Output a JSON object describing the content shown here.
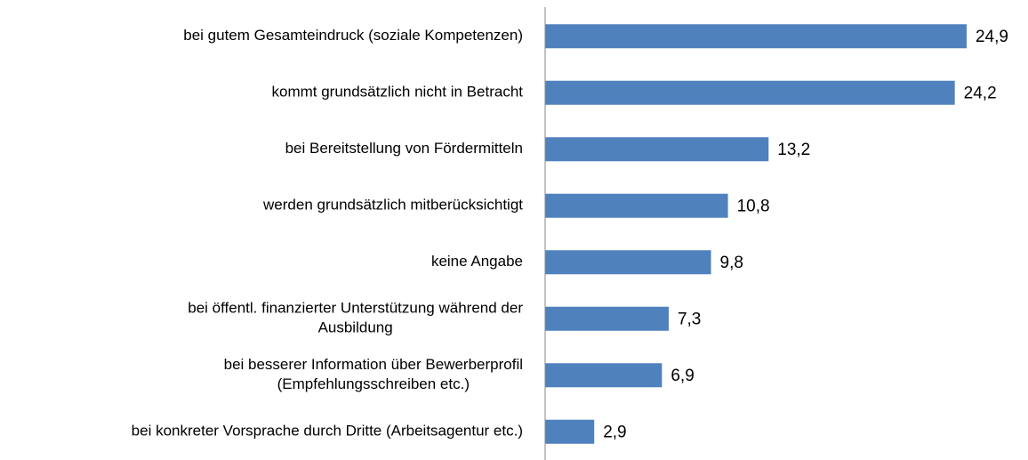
{
  "chart_data": {
    "type": "barh",
    "categories": [
      "bei gutem Gesamteindruck (soziale Kompetenzen)",
      "kommt grundsätzlich nicht in Betracht",
      "bei Bereitstellung von Fördermitteln",
      "werden grundsätzlich mitberücksichtigt",
      "keine Angabe",
      "bei öffentl. finanzierter Unterstützung während der\nAusbildung",
      "bei besserer Information über Bewerberprofil\n(Empfehlungsschreiben etc.)",
      "bei konkreter Vorsprache durch Dritte (Arbeitsagentur etc.)"
    ],
    "values": [
      24.9,
      24.2,
      13.2,
      10.8,
      9.8,
      7.3,
      6.9,
      2.9
    ],
    "value_labels": [
      "24,9",
      "24,2",
      "13,2",
      "10,8",
      "9,8",
      "7,3",
      "6,9",
      "2,9"
    ],
    "color": "#4f81bd",
    "xlim": [
      0,
      28
    ]
  }
}
